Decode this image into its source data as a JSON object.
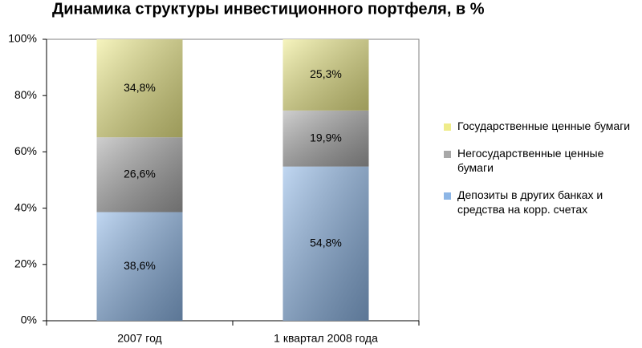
{
  "chart_data": {
    "type": "stacked-bar",
    "title": "Динамика структуры инвестиционного портфеля, в %",
    "categories": [
      "2007 год",
      "1 квартал 2008 года"
    ],
    "series": [
      {
        "name": "Депозиты в других банках и средства на корр. счетах",
        "color": "#8db6e6",
        "values": [
          38.6,
          54.8
        ],
        "value_labels": [
          "38,6%",
          "54,8%"
        ]
      },
      {
        "name": "Негосударственные ценные бумаги",
        "color": "#a8a8a8",
        "values": [
          26.6,
          19.9
        ],
        "value_labels": [
          "26,6%",
          "19,9%"
        ]
      },
      {
        "name": "Государственные ценные бумаги",
        "color": "#efec8a",
        "values": [
          34.8,
          25.3
        ],
        "value_labels": [
          "34,8%",
          "25,3%"
        ]
      }
    ],
    "ylim": [
      0,
      100
    ],
    "yticks": [
      {
        "value": 0,
        "label": "0%"
      },
      {
        "value": 20,
        "label": "20%"
      },
      {
        "value": 40,
        "label": "40%"
      },
      {
        "value": 60,
        "label": "60%"
      },
      {
        "value": 80,
        "label": "80%"
      },
      {
        "value": 100,
        "label": "100%"
      }
    ],
    "legend_position": "right"
  }
}
